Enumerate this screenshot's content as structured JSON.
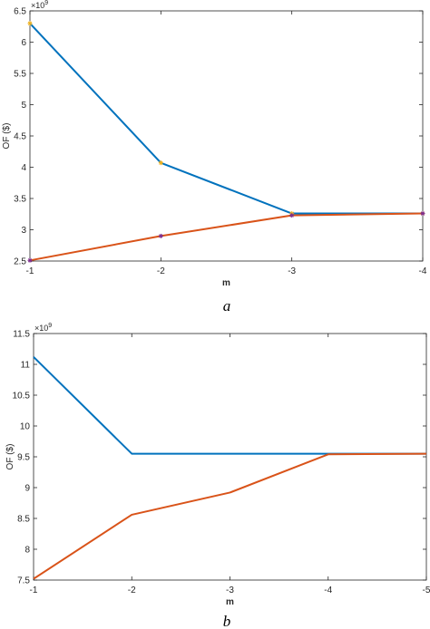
{
  "colors": {
    "series1": "#0072BD",
    "series2": "#D95319",
    "marker1": "#EDB120",
    "marker2": "#7E2F8E",
    "axis": "#262626"
  },
  "chart_data": [
    {
      "type": "line",
      "caption": "a",
      "xlabel": "m",
      "ylabel": "OF ($)",
      "yexponent": "×10",
      "yexponent_power": "9",
      "xlim": [
        -1,
        -4
      ],
      "ylim": [
        2.5,
        6.5
      ],
      "xticks": [
        -1,
        -2,
        -3,
        -4
      ],
      "xtick_labels": [
        "-1",
        "-2",
        "-3",
        "-4"
      ],
      "yticks": [
        2.5,
        3,
        3.5,
        4,
        4.5,
        5,
        5.5,
        6,
        6.5
      ],
      "ytick_labels": [
        "2.5",
        "3",
        "3.5",
        "4",
        "4.5",
        "5",
        "5.5",
        "6",
        "6.5"
      ],
      "x": [
        -1,
        -2,
        -3,
        -4
      ],
      "series": [
        {
          "values": [
            6.3,
            4.07,
            3.26,
            3.26
          ],
          "marker": "*"
        },
        {
          "values": [
            2.51,
            2.9,
            3.23,
            3.26
          ],
          "marker": "*"
        }
      ],
      "grid": false,
      "legend": "none"
    },
    {
      "type": "line",
      "caption": "b",
      "xlabel": "m",
      "ylabel": "OF ($)",
      "yexponent": "×10",
      "yexponent_power": "9",
      "xlim": [
        -1,
        -5
      ],
      "ylim": [
        7.5,
        11.5
      ],
      "xticks": [
        -1,
        -2,
        -3,
        -4,
        -5
      ],
      "xtick_labels": [
        "-1",
        "-2",
        "-3",
        "-4",
        "-5"
      ],
      "yticks": [
        7.5,
        8,
        8.5,
        9,
        9.5,
        10,
        10.5,
        11,
        11.5
      ],
      "ytick_labels": [
        "7.5",
        "8",
        "8.5",
        "9",
        "9.5",
        "10",
        "10.5",
        "11",
        "11.5"
      ],
      "x": [
        -1,
        -2,
        -3,
        -4,
        -5
      ],
      "series": [
        {
          "values": [
            11.12,
            9.55,
            9.55,
            9.55,
            9.55
          ],
          "marker": ""
        },
        {
          "values": [
            7.52,
            8.56,
            8.92,
            9.54,
            9.55
          ],
          "marker": ""
        }
      ],
      "grid": false,
      "legend": "none"
    }
  ]
}
